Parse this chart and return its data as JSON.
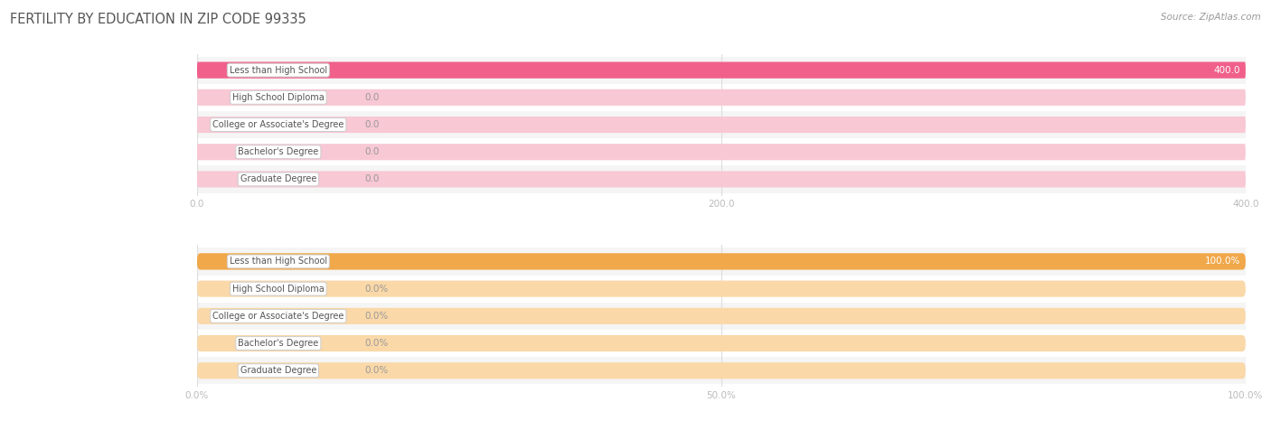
{
  "title": "FERTILITY BY EDUCATION IN ZIP CODE 99335",
  "source": "Source: ZipAtlas.com",
  "categories": [
    "Less than High School",
    "High School Diploma",
    "College or Associate's Degree",
    "Bachelor's Degree",
    "Graduate Degree"
  ],
  "chart1": {
    "values": [
      400.0,
      0.0,
      0.0,
      0.0,
      0.0
    ],
    "xlim": [
      0,
      400
    ],
    "xticks": [
      0.0,
      200.0,
      400.0
    ],
    "xtick_labels": [
      "0.0",
      "200.0",
      "400.0"
    ],
    "bar_color": "#F0608A",
    "bar_bg_color": "#F8C8D4",
    "label_color_full": "#FFFFFF",
    "label_color_zero": "#999999",
    "is_pct": false
  },
  "chart2": {
    "values": [
      100.0,
      0.0,
      0.0,
      0.0,
      0.0
    ],
    "xlim": [
      0,
      100
    ],
    "xticks": [
      0.0,
      50.0,
      100.0
    ],
    "xtick_labels": [
      "0.0%",
      "50.0%",
      "100.0%"
    ],
    "bar_color": "#F0A84A",
    "bar_bg_color": "#FAD8A8",
    "label_color_full": "#FFFFFF",
    "label_color_zero": "#999999",
    "is_pct": true
  },
  "bg_color": "#FFFFFF",
  "row_alt_color": "#F5F5F5",
  "row_base_color": "#FFFFFF",
  "label_box_facecolor": "#FFFFFF",
  "label_box_edgecolor": "#CCCCCC",
  "title_color": "#555555",
  "source_color": "#999999",
  "tick_color": "#BBBBBB",
  "grid_color": "#DDDDDD",
  "bar_height": 0.6,
  "title_fontsize": 10.5,
  "source_fontsize": 7.5,
  "label_fontsize": 7,
  "tick_fontsize": 7.5,
  "value_fontsize": 7.5
}
